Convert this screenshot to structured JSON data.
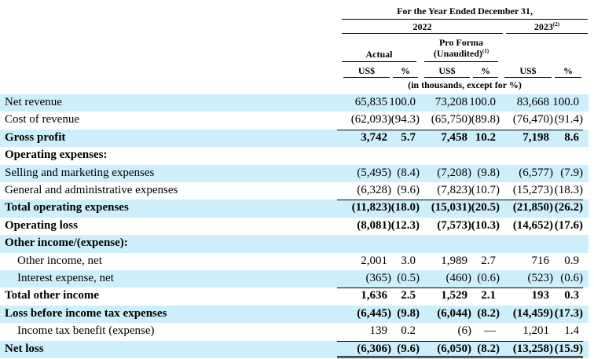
{
  "header": {
    "period": "For the Year Ended December 31,",
    "year_2022": "2022",
    "year_2023": "2023",
    "year_2023_note": "(2)",
    "pro_forma": "Pro Forma",
    "unaudited": "(Unaudited)",
    "unaudited_note": "(1)",
    "actual": "Actual",
    "columns": [
      "US$",
      "%",
      "US$",
      "%",
      "US$",
      "%"
    ],
    "units": "(in thousands, except for %)"
  },
  "rows": [
    {
      "label": "Net revenue",
      "values": [
        "65,835",
        "100.0",
        "73,208",
        "100.0",
        "83,668",
        "100.0"
      ]
    },
    {
      "label": "Cost of revenue",
      "values": [
        "(62,093)",
        "(94.3)",
        "(65,750)",
        "(89.8)",
        "(76,470)",
        "(91.4)"
      ]
    },
    {
      "label": "Gross profit",
      "bold": true,
      "total": true,
      "values": [
        "3,742",
        "5.7",
        "7,458",
        "10.2",
        "7,198",
        "8.6"
      ]
    },
    {
      "label": "Operating expenses:",
      "bold": true
    },
    {
      "label": "Selling and marketing expenses",
      "values": [
        "(5,495)",
        "(8.4)",
        "(7,208)",
        "(9.8)",
        "(6,577)",
        "(7.9)"
      ]
    },
    {
      "label": "General and administrative expenses",
      "values": [
        "(6,328)",
        "(9.6)",
        "(7,823)",
        "(10.7)",
        "(15,273)",
        "(18.3)"
      ]
    },
    {
      "label": "Total operating expenses",
      "bold": true,
      "total": true,
      "values": [
        "(11,823)",
        "(18.0)",
        "(15,031)",
        "(20.5)",
        "(21,850)",
        "(26.2)"
      ]
    },
    {
      "label": "Operating loss",
      "bold": true,
      "values": [
        "(8,081)",
        "(12.3)",
        "(7,573)",
        "(10.3)",
        "(14,652)",
        "(17.6)"
      ]
    },
    {
      "label": "Other income/(expense):",
      "bold": true
    },
    {
      "label": "Other income, net",
      "indent": true,
      "values": [
        "2,001",
        "3.0",
        "1,989",
        "2.7",
        "716",
        "0.9"
      ]
    },
    {
      "label": "Interest expense, net",
      "indent": true,
      "values": [
        "(365)",
        "(0.5)",
        "(460)",
        "(0.6)",
        "(523)",
        "(0.6)"
      ]
    },
    {
      "label": "Total other income",
      "bold": true,
      "total": true,
      "values": [
        "1,636",
        "2.5",
        "1,529",
        "2.1",
        "193",
        "0.3"
      ]
    },
    {
      "label": "Loss before income tax expenses",
      "bold": true,
      "values": [
        "(6,445)",
        "(9.8)",
        "(6,044)",
        "(8.2)",
        "(14,459)",
        "(17.3)"
      ]
    },
    {
      "label": "Income tax benefit (expense)",
      "indent": true,
      "values": [
        "139",
        "0.2",
        "(6)",
        "—",
        "1,201",
        "1.4"
      ]
    },
    {
      "label": "Net loss",
      "bold": true,
      "total": true,
      "final": true,
      "values": [
        "(6,306)",
        "(9.6)",
        "(6,050)",
        "(8.2)",
        "(13,258)",
        "(15.9)"
      ]
    }
  ]
}
